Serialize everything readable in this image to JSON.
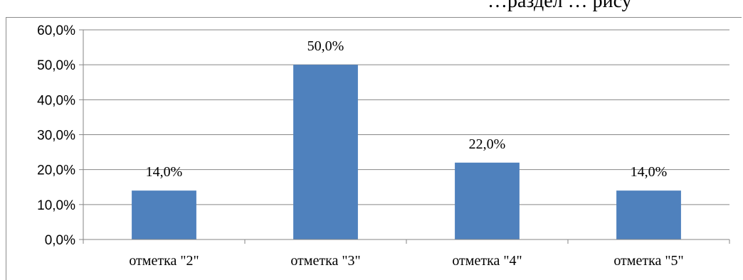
{
  "page": {
    "cut_text": "…раздел    … рису"
  },
  "chart_data": {
    "type": "bar",
    "categories": [
      "отметка \"2\"",
      "отметка \"3\"",
      "отметка \"4\"",
      "отметка \"5\""
    ],
    "values": [
      14.0,
      50.0,
      22.0,
      14.0
    ],
    "data_labels": [
      "14,0%",
      "50,0%",
      "22,0%",
      "14,0%"
    ],
    "ylim": [
      0,
      60
    ],
    "yticks": [
      0,
      10,
      20,
      30,
      40,
      50,
      60
    ],
    "ytick_labels": [
      "0,0%",
      "10,0%",
      "20,0%",
      "30,0%",
      "40,0%",
      "50,0%",
      "60,0%"
    ],
    "grid": true,
    "legend": "none",
    "colors": {
      "bar": "#4f81bd",
      "grid": "#868686",
      "axis": "#868686"
    }
  }
}
